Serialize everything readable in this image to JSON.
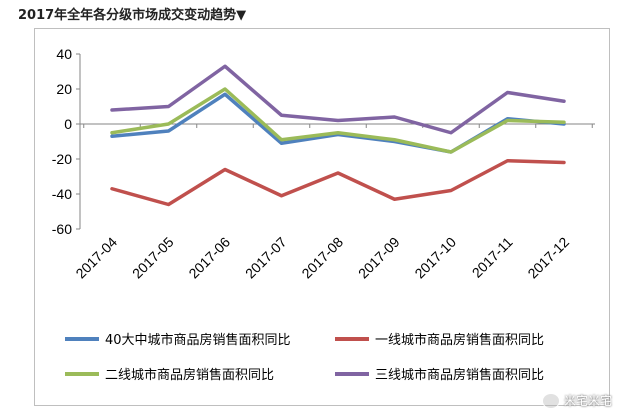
{
  "page": {
    "title": "2017年全年各分级市场成交变动趋势▼",
    "watermark": "米宅米宅"
  },
  "chart_data": {
    "type": "line",
    "categories": [
      "2017-04",
      "2017-05",
      "2017-06",
      "2017-07",
      "2017-08",
      "2017-09",
      "2017-10",
      "2017-11",
      "2017-12"
    ],
    "y_ticks": [
      "40",
      "20",
      "0",
      "-20",
      "-40",
      "-60"
    ],
    "ylim": [
      -60,
      40
    ],
    "grid": false,
    "legend_position": "bottom",
    "series": [
      {
        "name": "40大中城市商品房销售面积同比",
        "color": "#4f81bd",
        "values": [
          -7,
          -4,
          17,
          -11,
          -6,
          -10,
          -16,
          3,
          0
        ]
      },
      {
        "name": "一线城市商品房销售面积同比",
        "color": "#c0504d",
        "values": [
          -37,
          -46,
          -26,
          -41,
          -28,
          -43,
          -38,
          -21,
          -22
        ]
      },
      {
        "name": "二线城市商品房销售面积同比",
        "color": "#9bbb59",
        "values": [
          -5,
          0,
          20,
          -9,
          -5,
          -9,
          -16,
          2,
          1
        ]
      },
      {
        "name": "三线城市商品房销售面积同比",
        "color": "#8064a2",
        "values": [
          8,
          10,
          33,
          5,
          2,
          4,
          -5,
          18,
          13
        ]
      }
    ]
  }
}
